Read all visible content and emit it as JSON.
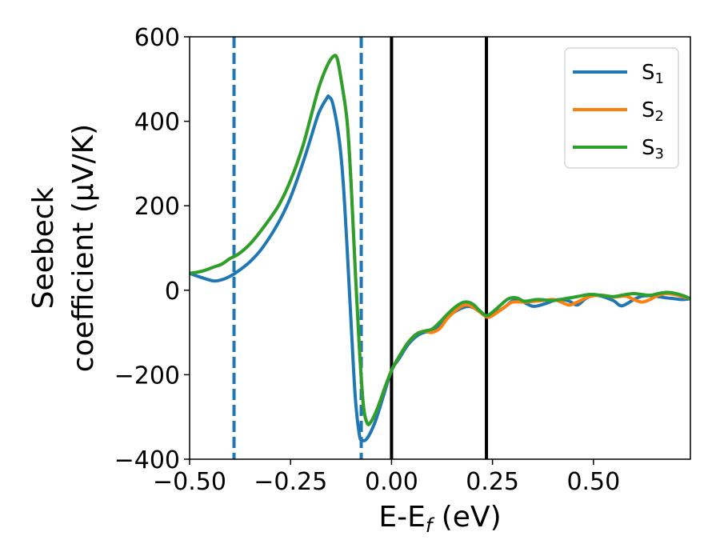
{
  "chart_data": {
    "type": "line",
    "xlabel": {
      "main": "E-E",
      "sub": "f",
      "rest": " (eV)"
    },
    "ylabel": {
      "line1": "Seebeck",
      "line2": "coefficient  (μV/K)"
    },
    "xlim": [
      -0.5,
      0.74
    ],
    "ylim": [
      -400,
      600
    ],
    "xticks": [
      -0.5,
      -0.25,
      0.0,
      0.25,
      0.5
    ],
    "xtick_labels": [
      "−0.50",
      "−0.25",
      "0.00",
      "0.25",
      "0.50"
    ],
    "yticks": [
      -400,
      -200,
      0,
      200,
      400,
      600
    ],
    "ytick_labels": [
      "−400",
      "−200",
      "0",
      "200",
      "400",
      "600"
    ],
    "grid": false,
    "legend_position": "top-right",
    "series": [
      {
        "name": "S",
        "name_sub": "1",
        "color": "#1f77b4",
        "points": [
          [
            -0.5,
            40
          ],
          [
            -0.47,
            30
          ],
          [
            -0.44,
            22
          ],
          [
            -0.42,
            25
          ],
          [
            -0.4,
            33
          ],
          [
            -0.38,
            45
          ],
          [
            -0.35,
            68
          ],
          [
            -0.32,
            100
          ],
          [
            -0.28,
            160
          ],
          [
            -0.25,
            220
          ],
          [
            -0.22,
            300
          ],
          [
            -0.2,
            360
          ],
          [
            -0.18,
            420
          ],
          [
            -0.16,
            455
          ],
          [
            -0.155,
            458
          ],
          [
            -0.145,
            440
          ],
          [
            -0.13,
            360
          ],
          [
            -0.12,
            260
          ],
          [
            -0.11,
            100
          ],
          [
            -0.1,
            -80
          ],
          [
            -0.09,
            -250
          ],
          [
            -0.08,
            -340
          ],
          [
            -0.073,
            -355
          ],
          [
            -0.06,
            -350
          ],
          [
            -0.04,
            -310
          ],
          [
            -0.02,
            -250
          ],
          [
            0.0,
            -190
          ],
          [
            0.02,
            -160
          ],
          [
            0.04,
            -130
          ],
          [
            0.06,
            -110
          ],
          [
            0.08,
            -100
          ],
          [
            0.1,
            -97
          ],
          [
            0.12,
            -80
          ],
          [
            0.15,
            -55
          ],
          [
            0.18,
            -40
          ],
          [
            0.2,
            -40
          ],
          [
            0.22,
            -52
          ],
          [
            0.235,
            -60
          ],
          [
            0.25,
            -57
          ],
          [
            0.28,
            -40
          ],
          [
            0.3,
            -25
          ],
          [
            0.32,
            -25
          ],
          [
            0.35,
            -38
          ],
          [
            0.38,
            -32
          ],
          [
            0.4,
            -25
          ],
          [
            0.42,
            -22
          ],
          [
            0.44,
            -26
          ],
          [
            0.46,
            -35
          ],
          [
            0.48,
            -20
          ],
          [
            0.5,
            -12
          ],
          [
            0.52,
            -14
          ],
          [
            0.55,
            -25
          ],
          [
            0.57,
            -37
          ],
          [
            0.6,
            -22
          ],
          [
            0.62,
            -14
          ],
          [
            0.64,
            -13
          ],
          [
            0.66,
            -15
          ],
          [
            0.68,
            -18
          ],
          [
            0.7,
            -20
          ],
          [
            0.72,
            -22
          ],
          [
            0.74,
            -20
          ]
        ]
      },
      {
        "name": "S",
        "name_sub": "2",
        "color": "#ff7f0e",
        "points": [
          [
            -0.5,
            40
          ],
          [
            -0.47,
            45
          ],
          [
            -0.44,
            55
          ],
          [
            -0.42,
            62
          ],
          [
            -0.4,
            75
          ],
          [
            -0.38,
            85
          ],
          [
            -0.35,
            110
          ],
          [
            -0.32,
            145
          ],
          [
            -0.28,
            200
          ],
          [
            -0.25,
            260
          ],
          [
            -0.22,
            340
          ],
          [
            -0.2,
            410
          ],
          [
            -0.18,
            480
          ],
          [
            -0.16,
            530
          ],
          [
            -0.145,
            553
          ],
          [
            -0.135,
            550
          ],
          [
            -0.125,
            500
          ],
          [
            -0.11,
            400
          ],
          [
            -0.1,
            250
          ],
          [
            -0.09,
            50
          ],
          [
            -0.08,
            -130
          ],
          [
            -0.07,
            -270
          ],
          [
            -0.06,
            -315
          ],
          [
            -0.05,
            -310
          ],
          [
            -0.035,
            -280
          ],
          [
            -0.02,
            -240
          ],
          [
            0.0,
            -190
          ],
          [
            0.02,
            -155
          ],
          [
            0.04,
            -125
          ],
          [
            0.06,
            -105
          ],
          [
            0.08,
            -97
          ],
          [
            0.1,
            -100
          ],
          [
            0.12,
            -90
          ],
          [
            0.14,
            -65
          ],
          [
            0.17,
            -40
          ],
          [
            0.19,
            -35
          ],
          [
            0.21,
            -45
          ],
          [
            0.235,
            -63
          ],
          [
            0.25,
            -60
          ],
          [
            0.28,
            -40
          ],
          [
            0.3,
            -28
          ],
          [
            0.33,
            -28
          ],
          [
            0.37,
            -25
          ],
          [
            0.4,
            -22
          ],
          [
            0.42,
            -28
          ],
          [
            0.44,
            -35
          ],
          [
            0.46,
            -28
          ],
          [
            0.49,
            -15
          ],
          [
            0.52,
            -12
          ],
          [
            0.55,
            -16
          ],
          [
            0.58,
            -14
          ],
          [
            0.6,
            -22
          ],
          [
            0.62,
            -28
          ],
          [
            0.64,
            -22
          ],
          [
            0.66,
            -12
          ],
          [
            0.68,
            -8
          ],
          [
            0.7,
            -10
          ],
          [
            0.72,
            -15
          ],
          [
            0.74,
            -20
          ]
        ]
      },
      {
        "name": "S",
        "name_sub": "3",
        "color": "#2ca02c",
        "points": [
          [
            -0.5,
            40
          ],
          [
            -0.47,
            45
          ],
          [
            -0.44,
            55
          ],
          [
            -0.42,
            62
          ],
          [
            -0.4,
            75
          ],
          [
            -0.38,
            85
          ],
          [
            -0.35,
            110
          ],
          [
            -0.32,
            145
          ],
          [
            -0.28,
            200
          ],
          [
            -0.25,
            260
          ],
          [
            -0.22,
            340
          ],
          [
            -0.2,
            410
          ],
          [
            -0.18,
            480
          ],
          [
            -0.16,
            530
          ],
          [
            -0.145,
            553
          ],
          [
            -0.135,
            550
          ],
          [
            -0.125,
            500
          ],
          [
            -0.11,
            400
          ],
          [
            -0.1,
            250
          ],
          [
            -0.09,
            50
          ],
          [
            -0.08,
            -130
          ],
          [
            -0.07,
            -270
          ],
          [
            -0.06,
            -315
          ],
          [
            -0.05,
            -310
          ],
          [
            -0.035,
            -280
          ],
          [
            -0.02,
            -240
          ],
          [
            0.0,
            -190
          ],
          [
            0.02,
            -155
          ],
          [
            0.04,
            -125
          ],
          [
            0.06,
            -105
          ],
          [
            0.08,
            -97
          ],
          [
            0.1,
            -92
          ],
          [
            0.12,
            -75
          ],
          [
            0.14,
            -55
          ],
          [
            0.16,
            -38
          ],
          [
            0.18,
            -28
          ],
          [
            0.2,
            -32
          ],
          [
            0.22,
            -50
          ],
          [
            0.235,
            -60
          ],
          [
            0.25,
            -52
          ],
          [
            0.27,
            -35
          ],
          [
            0.29,
            -20
          ],
          [
            0.31,
            -18
          ],
          [
            0.33,
            -26
          ],
          [
            0.36,
            -22
          ],
          [
            0.4,
            -24
          ],
          [
            0.43,
            -20
          ],
          [
            0.46,
            -15
          ],
          [
            0.49,
            -10
          ],
          [
            0.52,
            -12
          ],
          [
            0.55,
            -15
          ],
          [
            0.58,
            -10
          ],
          [
            0.6,
            -8
          ],
          [
            0.62,
            -10
          ],
          [
            0.64,
            -12
          ],
          [
            0.66,
            -8
          ],
          [
            0.68,
            -5
          ],
          [
            0.7,
            -7
          ],
          [
            0.72,
            -12
          ],
          [
            0.74,
            -20
          ]
        ]
      }
    ],
    "vlines": [
      {
        "x": -0.39,
        "style": "dashed",
        "color": "#1f77b4"
      },
      {
        "x": -0.075,
        "style": "dashed",
        "color": "#1f77b4"
      },
      {
        "x": 0.0,
        "style": "solid",
        "color": "#000000"
      },
      {
        "x": 0.235,
        "style": "solid",
        "color": "#000000"
      }
    ]
  }
}
